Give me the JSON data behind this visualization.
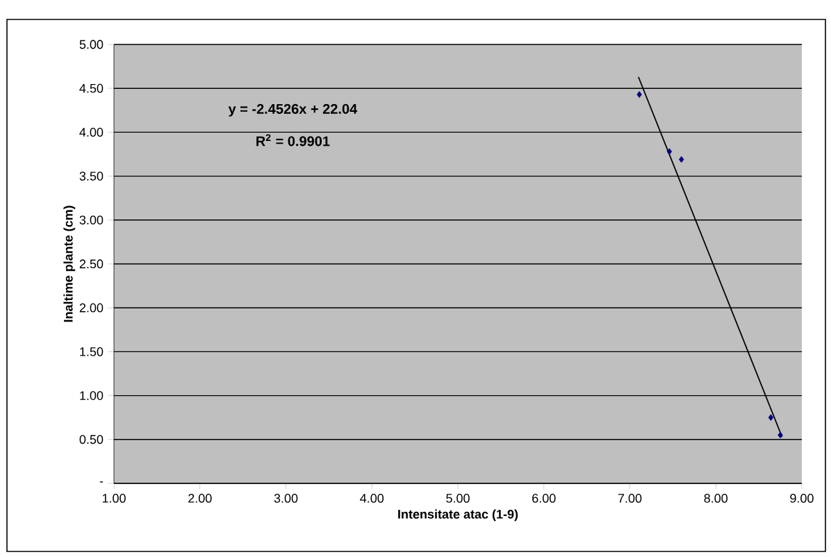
{
  "chart_data": {
    "type": "scatter",
    "xlabel": "Intensitate atac (1-9)",
    "ylabel": "Inaltime plante (cm)",
    "annotations": [
      "**y = -2.4526x + 22.04**",
      "**R$^{2}$ = 0.9901**"
    ],
    "series": [
      {
        "color": "#000080",
        "marker": "diamond",
        "x": [
          7.11,
          7.46,
          7.6,
          8.64,
          8.75
        ],
        "values": [
          4.43,
          3.78,
          3.69,
          0.75,
          0.55
        ]
      },
      {
        "type": "line",
        "color": "#000000",
        "line_style": "solid",
        "x": [
          7.1,
          8.77
        ],
        "values": [
          4.63,
          0.53
        ]
      }
    ],
    "xlim": [
      1,
      9
    ],
    "ylim": [
      0,
      5
    ],
    "xticks": [
      {
        "value": 1,
        "label": "1.00"
      },
      {
        "value": 2,
        "label": "2.00"
      },
      {
        "value": 3,
        "label": "3.00"
      },
      {
        "value": 4,
        "label": "4.00"
      },
      {
        "value": 5,
        "label": "5.00"
      },
      {
        "value": 6,
        "label": "6.00"
      },
      {
        "value": 7,
        "label": "7.00"
      },
      {
        "value": 8,
        "label": "8.00"
      },
      {
        "value": 9,
        "label": "9.00"
      }
    ],
    "yticks": [
      {
        "value": 0,
        "label": "-"
      },
      {
        "value": 0.5,
        "label": "0.50"
      },
      {
        "value": 1,
        "label": "1.00"
      },
      {
        "value": 1.5,
        "label": "1.50"
      },
      {
        "value": 2,
        "label": "2.00"
      },
      {
        "value": 2.5,
        "label": "2.50"
      },
      {
        "value": 3,
        "label": "3.00"
      },
      {
        "value": 3.5,
        "label": "3.50"
      },
      {
        "value": 4,
        "label": "4.00"
      },
      {
        "value": 4.5,
        "label": "4.50"
      },
      {
        "value": 5,
        "label": "5.00"
      }
    ],
    "grid": "y"
  }
}
